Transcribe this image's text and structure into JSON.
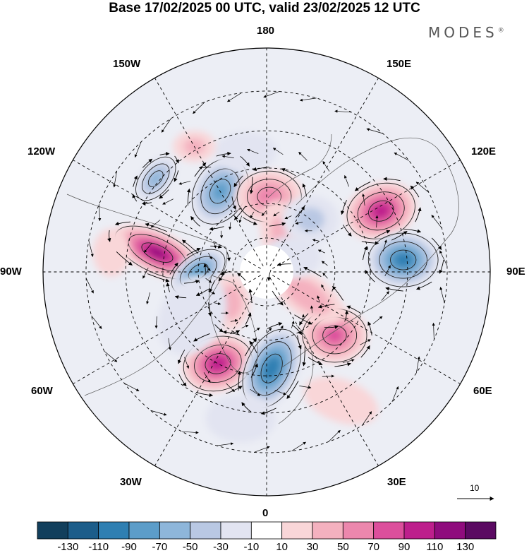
{
  "title": "Base 17/02/2025 00 UTC, valid 23/02/2025 12 UTC",
  "brand": "MODES",
  "brand_mark": "®",
  "longitude_labels": {
    "lon_180": "180",
    "lon_150e": "150E",
    "lon_120e": "120E",
    "lon_90e": "90E",
    "lon_60e": "60E",
    "lon_30e": "30E",
    "lon_0": "0",
    "lon_30w": "30W",
    "lon_60w": "60W",
    "lon_90w": "90W",
    "lon_120w": "120W",
    "lon_150w": "150W"
  },
  "vector_reference": "10",
  "colorbar": {
    "ticks": [
      "-130",
      "-110",
      "-90",
      "-70",
      "-50",
      "-30",
      "-10",
      "10",
      "30",
      "50",
      "70",
      "90",
      "110",
      "130"
    ],
    "colors": [
      "#123f5c",
      "#1c5d8a",
      "#2f7fb2",
      "#5c9dc9",
      "#8eb6da",
      "#b9c8e3",
      "#e2e4f1",
      "#ffffff",
      "#f9d6d8",
      "#f4b1bf",
      "#ec87ad",
      "#dc4f9c",
      "#bd1f8c",
      "#8f0c7d",
      "#5b0a62"
    ]
  },
  "anomalies": [
    {
      "id": "a1",
      "value": 110,
      "lon": -100,
      "colat": 32,
      "rx": 68,
      "ry": 30,
      "rot": 25
    },
    {
      "id": "a2",
      "value": 95,
      "lon": 118,
      "colat": 37,
      "rx": 52,
      "ry": 40,
      "rot": -20
    },
    {
      "id": "a3",
      "value": -95,
      "lon": 95,
      "colat": 39,
      "rx": 52,
      "ry": 40,
      "rot": 0
    },
    {
      "id": "a4",
      "value": -80,
      "lon": -90,
      "colat": 20,
      "rx": 45,
      "ry": 26,
      "rot": -35
    },
    {
      "id": "a5",
      "value": -70,
      "lon": -150,
      "colat": 27,
      "rx": 38,
      "ry": 52,
      "rot": 30
    },
    {
      "id": "a6",
      "value": -50,
      "lon": -130,
      "colat": 41,
      "rx": 22,
      "ry": 38,
      "rot": 40
    },
    {
      "id": "a7",
      "value": 55,
      "lon": 178,
      "colat": 22,
      "rx": 48,
      "ry": 38,
      "rot": 0
    },
    {
      "id": "a8",
      "value": 30,
      "lon": 160,
      "colat": 12,
      "rx": 28,
      "ry": 48,
      "rot": -10
    },
    {
      "id": "a9",
      "value": 95,
      "lon": -28,
      "colat": 30,
      "rx": 52,
      "ry": 40,
      "rot": -15
    },
    {
      "id": "a10",
      "value": -100,
      "lon": 3,
      "colat": 28,
      "rx": 38,
      "ry": 62,
      "rot": 25
    },
    {
      "id": "a11",
      "value": 70,
      "lon": 47,
      "colat": 27,
      "rx": 48,
      "ry": 40,
      "rot": 0
    },
    {
      "id": "a12",
      "value": 45,
      "lon": 60,
      "colat": 14,
      "rx": 58,
      "ry": 30,
      "rot": 35
    },
    {
      "id": "a13",
      "value": 40,
      "lon": -50,
      "colat": 14,
      "rx": 28,
      "ry": 40,
      "rot": 0
    },
    {
      "id": "a14",
      "value": -25,
      "lon": -60,
      "colat": 25,
      "rx": 45,
      "ry": 60,
      "rot": 30
    },
    {
      "id": "a15",
      "value": -30,
      "lon": 140,
      "colat": 20,
      "rx": 40,
      "ry": 34,
      "rot": 0
    },
    {
      "id": "a16",
      "value": -25,
      "lon": -170,
      "colat": 35,
      "rx": 45,
      "ry": 28,
      "rot": 0
    },
    {
      "id": "a17",
      "value": -20,
      "lon": -10,
      "colat": 42,
      "rx": 50,
      "ry": 34,
      "rot": 0
    },
    {
      "id": "a18",
      "value": 30,
      "lon": -150,
      "colat": 41,
      "rx": 30,
      "ry": 22,
      "rot": 0
    },
    {
      "id": "a19",
      "value": 25,
      "lon": -97,
      "colat": 44,
      "rx": 26,
      "ry": 34,
      "rot": 0
    },
    {
      "id": "a20",
      "value": 25,
      "lon": 30,
      "colat": 42,
      "rx": 55,
      "ry": 30,
      "rot": 20
    },
    {
      "id": "a21",
      "value": -20,
      "lon": 120,
      "colat": 9,
      "rx": 40,
      "ry": 30,
      "rot": 0
    }
  ]
}
